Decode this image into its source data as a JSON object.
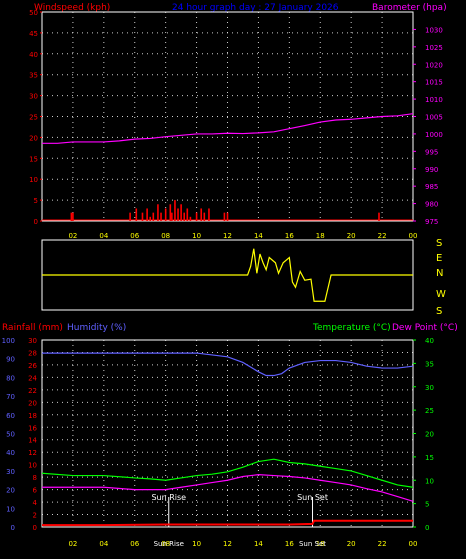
{
  "colors": {
    "background": "#000000",
    "wind": "#ff0000",
    "barometer": "#ff00ff",
    "title": "#0000ff",
    "wind_dir": "#ffff00",
    "humidity": "#6060ff",
    "temperature": "#00ff00",
    "dew_point": "#ff00ff",
    "rainfall": "#ff0000",
    "hour_labels": "#ffff00",
    "grid": "#ffffff",
    "sun_marker": "#ffffff"
  },
  "top": {
    "left_label": "Windspeed (kph)",
    "title": "24 hour graph day : 27 January 2026",
    "right_label": "Barometer (hpa)"
  },
  "middle": {
    "direction_labels": [
      "S",
      "E",
      "N",
      "W",
      "S"
    ]
  },
  "bottom": {
    "rainfall_label": "Rainfall (mm)",
    "humidity_label": "Humidity (%)",
    "temperature_label": "Temperature (°C)",
    "dewpoint_label": "Dew Point (°C)",
    "sunrise_label": "Sun Rise",
    "sunset_label": "Sun Set"
  },
  "chart_data": [
    {
      "type": "bar+line",
      "name": "wind-barometer",
      "x_ticks": [
        "02",
        "04",
        "06",
        "08",
        "10",
        "12",
        "14",
        "16",
        "18",
        "20",
        "22",
        "00"
      ],
      "xlim": [
        0,
        24
      ],
      "left_axis": {
        "label": "Windspeed (kph)",
        "ylim": [
          0,
          50
        ],
        "ticks": [
          0,
          5,
          10,
          15,
          20,
          25,
          30,
          35,
          40,
          45,
          50
        ]
      },
      "right_axis": {
        "label": "Barometer (hpa)",
        "ylim": [
          975,
          1035
        ],
        "ticks": [
          975,
          980,
          985,
          990,
          995,
          1000,
          1005,
          1010,
          1015,
          1020,
          1025,
          1030,
          1035
        ]
      },
      "windspeed": [
        [
          1.9,
          2
        ],
        [
          2.0,
          2
        ],
        [
          5.7,
          2
        ],
        [
          6.1,
          3
        ],
        [
          6.5,
          2
        ],
        [
          6.8,
          3
        ],
        [
          7.0,
          1
        ],
        [
          7.2,
          2
        ],
        [
          7.5,
          4
        ],
        [
          7.7,
          2
        ],
        [
          8.0,
          3
        ],
        [
          8.3,
          4
        ],
        [
          8.4,
          2
        ],
        [
          8.6,
          5
        ],
        [
          8.8,
          3
        ],
        [
          9.0,
          4
        ],
        [
          9.2,
          2
        ],
        [
          9.4,
          3
        ],
        [
          9.6,
          1
        ],
        [
          10.0,
          2
        ],
        [
          10.3,
          3
        ],
        [
          10.5,
          2
        ],
        [
          10.8,
          3
        ],
        [
          11.8,
          2
        ],
        [
          12.0,
          2
        ],
        [
          21.8,
          2
        ]
      ],
      "barometer": [
        [
          0.0,
          997.3
        ],
        [
          1.0,
          997.3
        ],
        [
          2.0,
          997.7
        ],
        [
          3.0,
          997.7
        ],
        [
          4.0,
          997.7
        ],
        [
          5.0,
          998.0
        ],
        [
          6.0,
          998.5
        ],
        [
          7.0,
          998.7
        ],
        [
          8.0,
          999.2
        ],
        [
          9.0,
          999.6
        ],
        [
          10.0,
          1000.0
        ],
        [
          11.0,
          1000.0
        ],
        [
          12.0,
          1000.2
        ],
        [
          13.0,
          1000.1
        ],
        [
          14.0,
          1000.3
        ],
        [
          15.0,
          1000.6
        ],
        [
          16.0,
          1001.5
        ],
        [
          17.0,
          1002.4
        ],
        [
          18.0,
          1003.4
        ],
        [
          19.0,
          1004.0
        ],
        [
          20.0,
          1004.2
        ],
        [
          21.0,
          1004.6
        ],
        [
          22.0,
          1005.0
        ],
        [
          23.0,
          1005.2
        ],
        [
          24.0,
          1005.8
        ]
      ]
    },
    {
      "type": "line",
      "name": "wind-direction",
      "xlim": [
        0,
        24
      ],
      "directions": [
        "S",
        "E",
        "N",
        "W",
        "S"
      ],
      "direction": [
        [
          0.0,
          0.0
        ],
        [
          13.3,
          0.0
        ],
        [
          13.5,
          0.25
        ],
        [
          13.7,
          0.75
        ],
        [
          13.9,
          0.05
        ],
        [
          14.1,
          0.6
        ],
        [
          14.3,
          0.35
        ],
        [
          14.5,
          0.15
        ],
        [
          14.7,
          0.5
        ],
        [
          15.1,
          0.35
        ],
        [
          15.3,
          0.05
        ],
        [
          15.6,
          0.35
        ],
        [
          16.0,
          0.5
        ],
        [
          16.2,
          -0.2
        ],
        [
          16.4,
          -0.35
        ],
        [
          16.7,
          0.1
        ],
        [
          17.0,
          -0.15
        ],
        [
          17.4,
          -0.12
        ],
        [
          17.6,
          -0.75
        ],
        [
          18.3,
          -0.75
        ],
        [
          18.7,
          0.0
        ],
        [
          24.0,
          0.0
        ]
      ]
    },
    {
      "type": "line",
      "name": "rain-humidity-temperature",
      "x_ticks": [
        "02",
        "04",
        "06",
        "08",
        "10",
        "12",
        "14",
        "16",
        "18",
        "20",
        "22",
        "00"
      ],
      "xlim": [
        0,
        24
      ],
      "rainfall_axis": {
        "label": "Rainfall (mm)",
        "ylim": [
          0,
          30
        ],
        "ticks": [
          0,
          2,
          4,
          6,
          8,
          10,
          12,
          14,
          16,
          18,
          20,
          22,
          24,
          26,
          28,
          30
        ]
      },
      "humidity_axis": {
        "label": "Humidity (%)",
        "ylim": [
          0,
          100
        ],
        "ticks": [
          0,
          10,
          20,
          30,
          40,
          50,
          60,
          70,
          80,
          90,
          100
        ]
      },
      "temperature_axis": {
        "label": "Temperature (°C)",
        "ylim": [
          0,
          40
        ],
        "ticks": [
          0,
          5,
          10,
          15,
          20,
          25,
          30,
          35,
          40
        ]
      },
      "sunrise": 8.2,
      "sunset": 17.5,
      "humidity": [
        [
          0.0,
          93
        ],
        [
          2.0,
          93
        ],
        [
          4.0,
          93
        ],
        [
          6.0,
          93
        ],
        [
          8.0,
          93
        ],
        [
          10.0,
          93
        ],
        [
          11.0,
          92
        ],
        [
          12.0,
          91
        ],
        [
          13.0,
          88
        ],
        [
          14.0,
          83
        ],
        [
          14.5,
          81
        ],
        [
          15.0,
          81
        ],
        [
          15.5,
          82
        ],
        [
          16.0,
          85
        ],
        [
          17.0,
          88
        ],
        [
          18.0,
          89
        ],
        [
          19.0,
          89
        ],
        [
          20.0,
          88
        ],
        [
          21.0,
          86
        ],
        [
          22.0,
          85
        ],
        [
          23.0,
          85
        ],
        [
          24.0,
          86
        ]
      ],
      "temperature": [
        [
          0.0,
          11.5
        ],
        [
          2.0,
          11.0
        ],
        [
          4.0,
          11.0
        ],
        [
          6.0,
          10.5
        ],
        [
          7.0,
          10.3
        ],
        [
          8.0,
          10.0
        ],
        [
          9.0,
          10.5
        ],
        [
          10.0,
          11.0
        ],
        [
          11.0,
          11.3
        ],
        [
          12.0,
          11.8
        ],
        [
          13.0,
          12.8
        ],
        [
          14.0,
          14.0
        ],
        [
          15.0,
          14.5
        ],
        [
          16.0,
          13.8
        ],
        [
          17.0,
          13.5
        ],
        [
          18.0,
          13.0
        ],
        [
          19.0,
          12.5
        ],
        [
          20.0,
          12.0
        ],
        [
          21.0,
          11.0
        ],
        [
          22.0,
          10.0
        ],
        [
          23.0,
          9.0
        ],
        [
          24.0,
          8.5
        ]
      ],
      "dew_point": [
        [
          0.0,
          8.5
        ],
        [
          2.0,
          8.5
        ],
        [
          4.0,
          8.5
        ],
        [
          6.0,
          8.0
        ],
        [
          8.0,
          8.0
        ],
        [
          9.0,
          8.5
        ],
        [
          10.0,
          9.0
        ],
        [
          11.0,
          9.5
        ],
        [
          12.0,
          10.0
        ],
        [
          13.0,
          10.8
        ],
        [
          14.0,
          11.2
        ],
        [
          15.0,
          11.0
        ],
        [
          16.0,
          10.8
        ],
        [
          17.0,
          10.5
        ],
        [
          18.0,
          10.0
        ],
        [
          19.0,
          9.5
        ],
        [
          20.0,
          9.0
        ],
        [
          21.0,
          8.2
        ],
        [
          22.0,
          7.5
        ],
        [
          23.0,
          6.5
        ],
        [
          24.0,
          5.5
        ]
      ],
      "rainfall": [
        [
          0.0,
          0.3
        ],
        [
          4.0,
          0.3
        ],
        [
          8.0,
          0.4
        ],
        [
          12.0,
          0.4
        ],
        [
          16.0,
          0.4
        ],
        [
          17.5,
          0.5
        ],
        [
          17.6,
          1.0
        ],
        [
          24.0,
          1.0
        ]
      ]
    }
  ]
}
